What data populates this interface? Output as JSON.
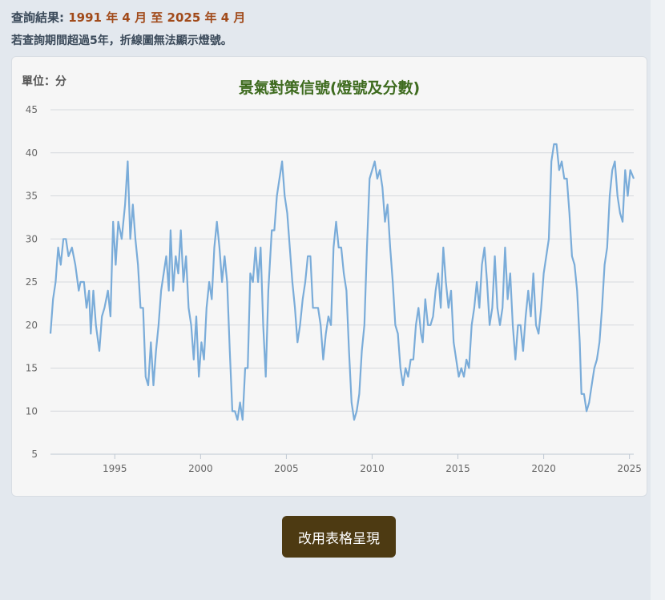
{
  "query": {
    "label": "查詢結果:",
    "range_text": "1991 年 4 月 至 2025 年 4 月"
  },
  "note": "若查詢期間超過5年，折線圖無法顯示燈號。",
  "unit_label": "單位：分",
  "table_button_label": "改用表格呈現",
  "colors": {
    "line": "#7aacd9",
    "title": "#3e6b1f",
    "button": "#4d3a12"
  },
  "chart_data": {
    "type": "line",
    "title": "景氣對策信號(燈號及分數)",
    "xlabel": "",
    "ylabel": "單位：分",
    "ylim": [
      5,
      45
    ],
    "xlim": [
      1991.25,
      2025.25
    ],
    "yticks": [
      5,
      10,
      15,
      20,
      25,
      30,
      35,
      40,
      45
    ],
    "xticks": [
      1995,
      2000,
      2005,
      2010,
      2015,
      2020,
      2025
    ],
    "grid": true,
    "legend": "none",
    "series": [
      {
        "points": [
          [
            1991.25,
            19
          ],
          [
            1991.4,
            23
          ],
          [
            1991.55,
            25
          ],
          [
            1991.7,
            29
          ],
          [
            1991.85,
            27
          ],
          [
            1992.0,
            30
          ],
          [
            1992.15,
            30
          ],
          [
            1992.3,
            28
          ],
          [
            1992.5,
            29
          ],
          [
            1992.7,
            27
          ],
          [
            1992.9,
            24
          ],
          [
            1993.0,
            25
          ],
          [
            1993.2,
            25
          ],
          [
            1993.35,
            22
          ],
          [
            1993.5,
            24
          ],
          [
            1993.6,
            19
          ],
          [
            1993.75,
            24
          ],
          [
            1993.9,
            20
          ],
          [
            1994.1,
            17
          ],
          [
            1994.25,
            21
          ],
          [
            1994.4,
            22
          ],
          [
            1994.6,
            24
          ],
          [
            1994.75,
            21
          ],
          [
            1994.9,
            32
          ],
          [
            1995.05,
            27
          ],
          [
            1995.2,
            32
          ],
          [
            1995.4,
            30
          ],
          [
            1995.6,
            34
          ],
          [
            1995.75,
            39
          ],
          [
            1995.9,
            30
          ],
          [
            1996.05,
            34
          ],
          [
            1996.2,
            30
          ],
          [
            1996.35,
            27
          ],
          [
            1996.5,
            22
          ],
          [
            1996.65,
            22
          ],
          [
            1996.8,
            14
          ],
          [
            1996.95,
            13
          ],
          [
            1997.1,
            18
          ],
          [
            1997.25,
            13
          ],
          [
            1997.4,
            17
          ],
          [
            1997.55,
            20
          ],
          [
            1997.7,
            24
          ],
          [
            1997.85,
            26
          ],
          [
            1998.0,
            28
          ],
          [
            1998.15,
            24
          ],
          [
            1998.25,
            31
          ],
          [
            1998.4,
            24
          ],
          [
            1998.55,
            28
          ],
          [
            1998.7,
            26
          ],
          [
            1998.85,
            31
          ],
          [
            1999.0,
            25
          ],
          [
            1999.15,
            28
          ],
          [
            1999.3,
            22
          ],
          [
            1999.45,
            20
          ],
          [
            1999.6,
            16
          ],
          [
            1999.75,
            21
          ],
          [
            1999.9,
            14
          ],
          [
            2000.05,
            18
          ],
          [
            2000.2,
            16
          ],
          [
            2000.35,
            22
          ],
          [
            2000.5,
            25
          ],
          [
            2000.65,
            23
          ],
          [
            2000.8,
            29
          ],
          [
            2000.95,
            32
          ],
          [
            2001.1,
            29
          ],
          [
            2001.25,
            25
          ],
          [
            2001.4,
            28
          ],
          [
            2001.55,
            25
          ],
          [
            2001.7,
            17
          ],
          [
            2001.85,
            10
          ],
          [
            2002.0,
            10
          ],
          [
            2002.15,
            9
          ],
          [
            2002.3,
            11
          ],
          [
            2002.45,
            9
          ],
          [
            2002.6,
            15
          ],
          [
            2002.75,
            15
          ],
          [
            2002.9,
            26
          ],
          [
            2003.05,
            25
          ],
          [
            2003.2,
            29
          ],
          [
            2003.35,
            25
          ],
          [
            2003.5,
            29
          ],
          [
            2003.65,
            20
          ],
          [
            2003.8,
            14
          ],
          [
            2003.95,
            24
          ],
          [
            2004.15,
            31
          ],
          [
            2004.3,
            31
          ],
          [
            2004.45,
            35
          ],
          [
            2004.6,
            37
          ],
          [
            2004.75,
            39
          ],
          [
            2004.9,
            35
          ],
          [
            2005.05,
            33
          ],
          [
            2005.2,
            29
          ],
          [
            2005.35,
            25
          ],
          [
            2005.5,
            22
          ],
          [
            2005.65,
            18
          ],
          [
            2005.8,
            20
          ],
          [
            2005.95,
            23
          ],
          [
            2006.1,
            25
          ],
          [
            2006.25,
            28
          ],
          [
            2006.4,
            28
          ],
          [
            2006.55,
            22
          ],
          [
            2006.7,
            22
          ],
          [
            2006.85,
            22
          ],
          [
            2007.0,
            20
          ],
          [
            2007.15,
            16
          ],
          [
            2007.3,
            19
          ],
          [
            2007.45,
            21
          ],
          [
            2007.6,
            20
          ],
          [
            2007.75,
            29
          ],
          [
            2007.9,
            32
          ],
          [
            2008.05,
            29
          ],
          [
            2008.2,
            29
          ],
          [
            2008.35,
            26
          ],
          [
            2008.5,
            24
          ],
          [
            2008.65,
            17
          ],
          [
            2008.8,
            11
          ],
          [
            2008.95,
            9
          ],
          [
            2009.1,
            10
          ],
          [
            2009.25,
            12
          ],
          [
            2009.4,
            17
          ],
          [
            2009.55,
            20
          ],
          [
            2009.7,
            29
          ],
          [
            2009.85,
            37
          ],
          [
            2010.0,
            38
          ],
          [
            2010.15,
            39
          ],
          [
            2010.3,
            37
          ],
          [
            2010.45,
            38
          ],
          [
            2010.6,
            36
          ],
          [
            2010.75,
            32
          ],
          [
            2010.9,
            34
          ],
          [
            2011.05,
            29
          ],
          [
            2011.2,
            25
          ],
          [
            2011.35,
            20
          ],
          [
            2011.5,
            19
          ],
          [
            2011.65,
            15
          ],
          [
            2011.8,
            13
          ],
          [
            2011.95,
            15
          ],
          [
            2012.1,
            14
          ],
          [
            2012.25,
            16
          ],
          [
            2012.4,
            16
          ],
          [
            2012.55,
            20
          ],
          [
            2012.7,
            22
          ],
          [
            2012.85,
            19
          ],
          [
            2012.95,
            18
          ],
          [
            2013.1,
            23
          ],
          [
            2013.25,
            20
          ],
          [
            2013.4,
            20
          ],
          [
            2013.55,
            21
          ],
          [
            2013.7,
            24
          ],
          [
            2013.85,
            26
          ],
          [
            2014.0,
            22
          ],
          [
            2014.15,
            29
          ],
          [
            2014.3,
            25
          ],
          [
            2014.45,
            22
          ],
          [
            2014.6,
            24
          ],
          [
            2014.75,
            18
          ],
          [
            2014.9,
            16
          ],
          [
            2015.05,
            14
          ],
          [
            2015.2,
            15
          ],
          [
            2015.35,
            14
          ],
          [
            2015.5,
            16
          ],
          [
            2015.65,
            15
          ],
          [
            2015.8,
            20
          ],
          [
            2015.95,
            22
          ],
          [
            2016.1,
            25
          ],
          [
            2016.25,
            22
          ],
          [
            2016.4,
            27
          ],
          [
            2016.55,
            29
          ],
          [
            2016.7,
            25
          ],
          [
            2016.85,
            20
          ],
          [
            2017.0,
            22
          ],
          [
            2017.15,
            28
          ],
          [
            2017.3,
            22
          ],
          [
            2017.45,
            20
          ],
          [
            2017.6,
            22
          ],
          [
            2017.75,
            29
          ],
          [
            2017.9,
            23
          ],
          [
            2018.05,
            26
          ],
          [
            2018.2,
            20
          ],
          [
            2018.35,
            16
          ],
          [
            2018.5,
            20
          ],
          [
            2018.65,
            20
          ],
          [
            2018.8,
            17
          ],
          [
            2018.95,
            21
          ],
          [
            2019.1,
            24
          ],
          [
            2019.25,
            21
          ],
          [
            2019.4,
            26
          ],
          [
            2019.55,
            20
          ],
          [
            2019.7,
            19
          ],
          [
            2019.85,
            22
          ],
          [
            2020.0,
            26
          ],
          [
            2020.15,
            28
          ],
          [
            2020.3,
            30
          ],
          [
            2020.45,
            39
          ],
          [
            2020.6,
            41
          ],
          [
            2020.75,
            41
          ],
          [
            2020.9,
            38
          ],
          [
            2021.05,
            39
          ],
          [
            2021.2,
            37
          ],
          [
            2021.35,
            37
          ],
          [
            2021.5,
            33
          ],
          [
            2021.65,
            28
          ],
          [
            2021.8,
            27
          ],
          [
            2021.95,
            24
          ],
          [
            2022.1,
            18
          ],
          [
            2022.2,
            12
          ],
          [
            2022.35,
            12
          ],
          [
            2022.5,
            10
          ],
          [
            2022.65,
            11
          ],
          [
            2022.8,
            13
          ],
          [
            2022.95,
            15
          ],
          [
            2023.1,
            16
          ],
          [
            2023.25,
            18
          ],
          [
            2023.4,
            22
          ],
          [
            2023.55,
            27
          ],
          [
            2023.7,
            29
          ],
          [
            2023.85,
            35
          ],
          [
            2024.0,
            38
          ],
          [
            2024.15,
            39
          ],
          [
            2024.3,
            35
          ],
          [
            2024.45,
            33
          ],
          [
            2024.6,
            32
          ],
          [
            2024.75,
            38
          ],
          [
            2024.9,
            35
          ],
          [
            2025.05,
            38
          ],
          [
            2025.25,
            37
          ]
        ]
      }
    ]
  }
}
